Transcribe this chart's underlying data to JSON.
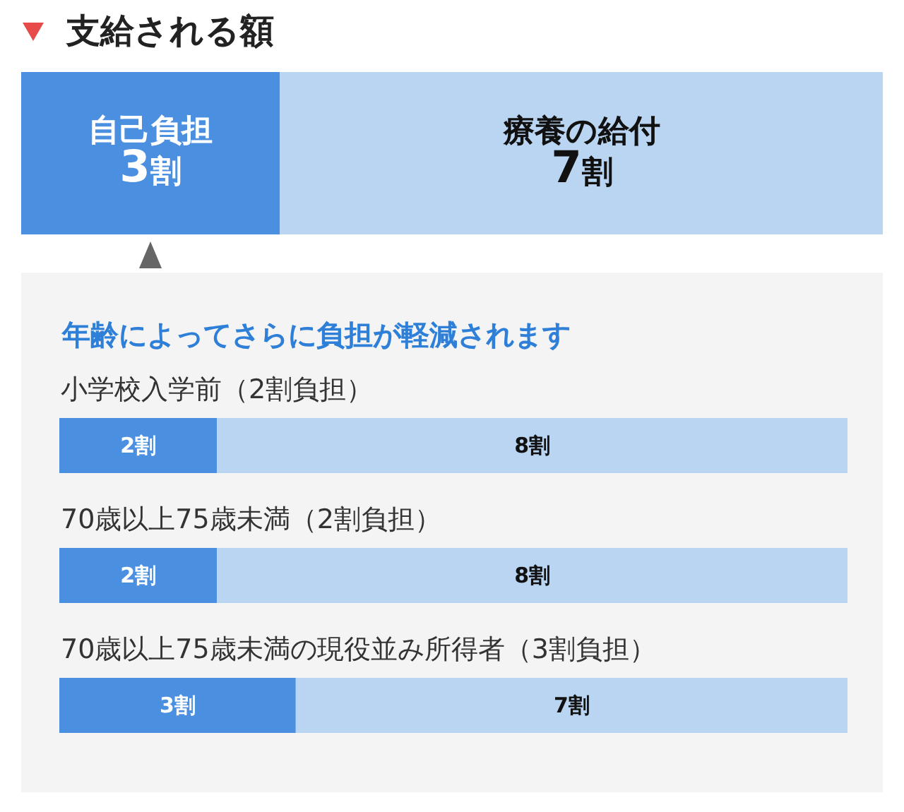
{
  "chart_data": [
    {
      "type": "bar",
      "orientation": "horizontal",
      "stacked": true,
      "title": "支給される額",
      "categories": [
        null
      ],
      "series": [
        {
          "name": "自己負担",
          "color": "#4a8fe0",
          "values": [
            3
          ],
          "value_labels": [
            "3割"
          ]
        },
        {
          "name": "療養の給付",
          "color": "#b9d5f1",
          "values": [
            7
          ],
          "value_labels": [
            "7割"
          ]
        }
      ],
      "tick_labels": false
    },
    {
      "type": "bar",
      "orientation": "horizontal",
      "stacked": true,
      "subtitle": "年齢によってさらに負担が軽減されます",
      "title": "小学校入学前（2割負担）",
      "categories": [
        null
      ],
      "series": [
        {
          "color": "#4a8fe0",
          "values": [
            2
          ],
          "value_labels": [
            "2割"
          ]
        },
        {
          "color": "#b9d5f1",
          "values": [
            8
          ],
          "value_labels": [
            "8割"
          ]
        }
      ],
      "tick_labels": false
    },
    {
      "type": "bar",
      "orientation": "horizontal",
      "stacked": true,
      "title": "70歳以上75歳未満（2割負担）",
      "categories": [
        null
      ],
      "series": [
        {
          "color": "#4a8fe0",
          "values": [
            2
          ],
          "value_labels": [
            "2割"
          ]
        },
        {
          "color": "#b9d5f1",
          "values": [
            8
          ],
          "value_labels": [
            "8割"
          ]
        }
      ],
      "tick_labels": false
    },
    {
      "type": "bar",
      "orientation": "horizontal",
      "stacked": true,
      "title": "70歳以上75歳未満の現役並み所得者（3割負担）",
      "categories": [
        null
      ],
      "series": [
        {
          "color": "#4a8fe0",
          "values": [
            3
          ],
          "value_labels": [
            "3割"
          ]
        },
        {
          "color": "#b9d5f1",
          "values": [
            7
          ],
          "value_labels": [
            "7割"
          ]
        }
      ],
      "tick_labels": false
    }
  ]
}
